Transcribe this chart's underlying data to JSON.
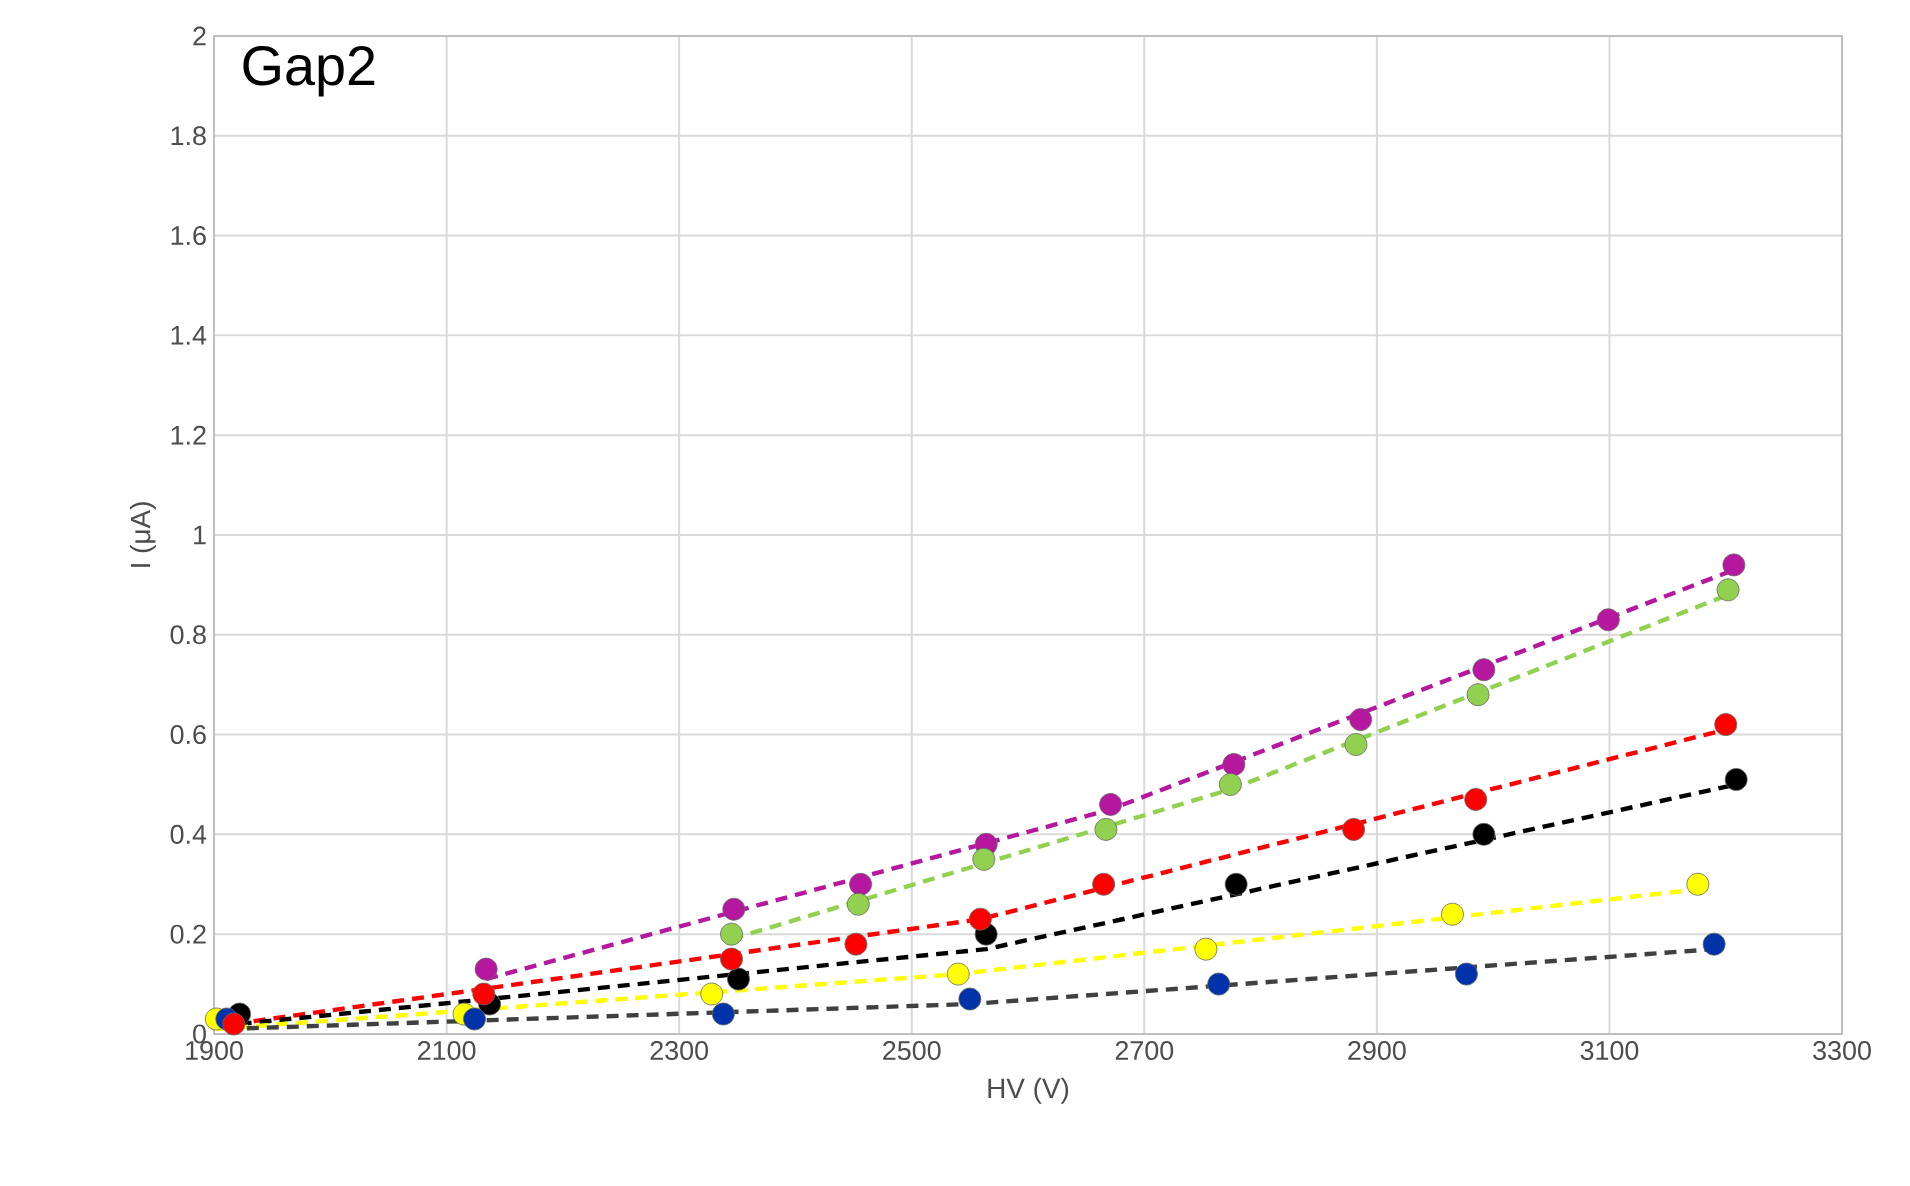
{
  "chart_data": {
    "type": "scatter",
    "title": "Gap2",
    "xlabel": "HV (V)",
    "ylabel": "I (μA)",
    "xlim": [
      1900,
      3300
    ],
    "ylim": [
      0,
      2
    ],
    "xticks": [
      1900,
      2100,
      2300,
      2500,
      2700,
      2900,
      3100,
      3300
    ],
    "yticks": [
      0,
      0.2,
      0.4,
      0.6,
      0.8,
      1,
      1.2,
      1.4,
      1.6,
      1.8,
      2
    ],
    "grid": true,
    "legend": false,
    "marker": "circle",
    "series": [
      {
        "color": "#b5179e",
        "x": [
          2134,
          2347,
          2456,
          2564,
          2671,
          2777,
          2886,
          2992,
          3099,
          3207
        ],
        "values": [
          0.13,
          0.25,
          0.3,
          0.38,
          0.46,
          0.54,
          0.63,
          0.73,
          0.83,
          0.94
        ]
      },
      {
        "color": "#92d050",
        "x": [
          2345,
          2454,
          2562,
          2667,
          2774,
          2882,
          2987,
          3202
        ],
        "values": [
          0.2,
          0.26,
          0.35,
          0.41,
          0.5,
          0.58,
          0.68,
          0.89
        ]
      },
      {
        "color": "#000000",
        "x": [
          1922,
          2137,
          2351,
          2564,
          2779,
          2992,
          3209
        ],
        "values": [
          0.04,
          0.06,
          0.11,
          0.2,
          0.3,
          0.4,
          0.51
        ]
      },
      {
        "color": "#ffff00",
        "x": [
          1902,
          2115,
          2328,
          2540,
          2753,
          2965,
          3176
        ],
        "values": [
          0.03,
          0.04,
          0.08,
          0.12,
          0.17,
          0.24,
          0.3
        ]
      },
      {
        "color": "#0033aa",
        "x": [
          1911,
          2124,
          2338,
          2550,
          2764,
          2977,
          3190
        ],
        "values": [
          0.03,
          0.03,
          0.04,
          0.07,
          0.1,
          0.12,
          0.18
        ]
      },
      {
        "color": "#ff0000",
        "x": [
          1917,
          2132,
          2345,
          2452,
          2559,
          2665,
          2880,
          2985,
          3200
        ],
        "values": [
          0.02,
          0.08,
          0.15,
          0.18,
          0.23,
          0.3,
          0.41,
          0.47,
          0.62
        ]
      },
      {
        "type": "line",
        "line_style": "dashed",
        "marker": "none",
        "color": "#b5179e",
        "x": [
          2134,
          2671,
          3207
        ],
        "values": [
          0.11,
          0.45,
          0.93
        ]
      },
      {
        "type": "line",
        "line_style": "dashed",
        "marker": "none",
        "color": "#92d050",
        "x": [
          2345,
          2774,
          3202
        ],
        "values": [
          0.19,
          0.49,
          0.88
        ]
      },
      {
        "type": "line",
        "line_style": "dashed",
        "marker": "none",
        "color": "#ff0000",
        "x": [
          1917,
          2559,
          3200
        ],
        "values": [
          0.02,
          0.23,
          0.61
        ]
      },
      {
        "type": "line",
        "line_style": "dashed",
        "marker": "none",
        "color": "#000000",
        "x": [
          1922,
          2564,
          3209
        ],
        "values": [
          0.02,
          0.17,
          0.5
        ]
      },
      {
        "type": "line",
        "line_style": "dashed",
        "marker": "none",
        "color": "#ffff00",
        "x": [
          1902,
          2540,
          3176
        ],
        "values": [
          0.01,
          0.12,
          0.29
        ]
      },
      {
        "type": "line",
        "line_style": "dashed",
        "marker": "none",
        "color": "#404040",
        "x": [
          1911,
          2550,
          3190
        ],
        "values": [
          0.01,
          0.06,
          0.17
        ]
      }
    ]
  }
}
